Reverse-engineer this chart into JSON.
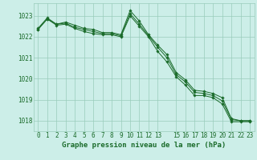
{
  "background_color": "#cceee8",
  "grid_color": "#99ccbb",
  "line_color": "#1a6b2a",
  "marker_color": "#1a6b2a",
  "xlim": [
    -0.5,
    23.5
  ],
  "ylim": [
    1017.5,
    1023.6
  ],
  "yticks": [
    1018,
    1019,
    1020,
    1021,
    1022,
    1023
  ],
  "xtick_labels": [
    "0",
    "1",
    "2",
    "3",
    "4",
    "5",
    "6",
    "7",
    "8",
    "9",
    "10",
    "11",
    "12",
    "13",
    "15",
    "16",
    "17",
    "18",
    "19",
    "20",
    "21",
    "22",
    "23"
  ],
  "xtick_positions": [
    0,
    1,
    2,
    3,
    4,
    5,
    6,
    7,
    8,
    9,
    10,
    11,
    12,
    13,
    15,
    16,
    17,
    18,
    19,
    20,
    21,
    22,
    23
  ],
  "series": [
    [
      1022.4,
      1022.9,
      1022.6,
      1022.7,
      1022.55,
      1022.4,
      1022.35,
      1022.2,
      1022.2,
      1022.1,
      1023.25,
      1022.75,
      1022.1,
      1021.6,
      1021.15,
      1020.3,
      1019.95,
      1019.45,
      1019.4,
      1019.3,
      1019.1,
      1018.1,
      1018.0,
      1018.0
    ],
    [
      1022.35,
      1022.85,
      1022.6,
      1022.65,
      1022.45,
      1022.35,
      1022.25,
      1022.15,
      1022.15,
      1022.05,
      1023.1,
      1022.6,
      1022.05,
      1021.5,
      1021.0,
      1020.2,
      1019.85,
      1019.35,
      1019.3,
      1019.2,
      1018.95,
      1018.05,
      1018.0,
      1018.0
    ],
    [
      1022.35,
      1022.85,
      1022.55,
      1022.6,
      1022.4,
      1022.25,
      1022.15,
      1022.1,
      1022.1,
      1022.0,
      1023.0,
      1022.5,
      1022.0,
      1021.3,
      1020.8,
      1020.1,
      1019.7,
      1019.2,
      1019.2,
      1019.1,
      1018.8,
      1017.95,
      1017.95,
      1017.95
    ]
  ],
  "xlabel": "Graphe pression niveau de la mer (hPa)",
  "xlabel_fontsize": 6.5,
  "tick_fontsize": 5.5,
  "figwidth": 3.2,
  "figheight": 2.0,
  "dpi": 100
}
